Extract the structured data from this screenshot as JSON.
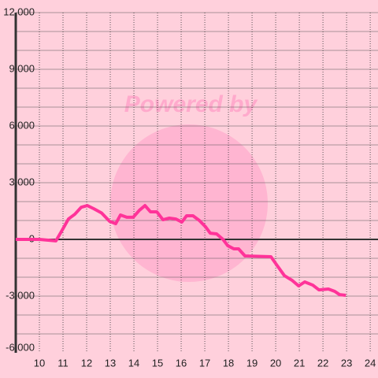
{
  "chart_data": {
    "type": "line",
    "watermark": "Powered by",
    "x": [
      9.0,
      10.0,
      10.7,
      10.97,
      11.23,
      11.5,
      11.77,
      12.03,
      12.3,
      12.63,
      12.97,
      13.23,
      13.43,
      13.7,
      13.97,
      14.23,
      14.47,
      14.7,
      14.97,
      15.23,
      15.5,
      15.77,
      16.03,
      16.23,
      16.5,
      16.77,
      17.03,
      17.23,
      17.5,
      17.77,
      17.97,
      18.23,
      18.43,
      18.7,
      19.8,
      20.03,
      20.37,
      20.7,
      20.97,
      21.23,
      21.57,
      21.83,
      22.23,
      22.5,
      22.7,
      22.97
    ],
    "series": [
      {
        "color": "#ff3399",
        "values": [
          0,
          0,
          -80,
          500,
          1080,
          1330,
          1700,
          1790,
          1625,
          1400,
          960,
          830,
          1290,
          1170,
          1170,
          1540,
          1790,
          1460,
          1460,
          1040,
          1125,
          1080,
          920,
          1250,
          1250,
          1000,
          670,
          330,
          290,
          0,
          -330,
          -500,
          -500,
          -875,
          -915,
          -1330,
          -1920,
          -2170,
          -2460,
          -2250,
          -2420,
          -2670,
          -2625,
          -2750,
          -2920,
          -2960
        ]
      }
    ],
    "xlim": [
      9,
      24.33
    ],
    "xticks": [
      10,
      11,
      12,
      13,
      14,
      15,
      16,
      17,
      18,
      19,
      20,
      21,
      22,
      23,
      24
    ],
    "ylim": [
      -6000,
      12000
    ],
    "yticks": [
      {
        "value": 12000,
        "label": "12,000"
      },
      {
        "value": 9000,
        "label": "9,000"
      },
      {
        "value": 6000,
        "label": "6,000"
      },
      {
        "value": 3000,
        "label": "3,000"
      },
      0,
      {
        "value": -3000,
        "label": "-3,000"
      },
      {
        "value": -6000,
        "label": "-6,000"
      }
    ],
    "ygrid": [
      -5000,
      -4000,
      -3000,
      -2000,
      -1000,
      1000,
      2000,
      3000,
      4000,
      5000,
      6000,
      7000,
      8000,
      9000,
      10000,
      11000,
      12000
    ],
    "grid": true
  }
}
